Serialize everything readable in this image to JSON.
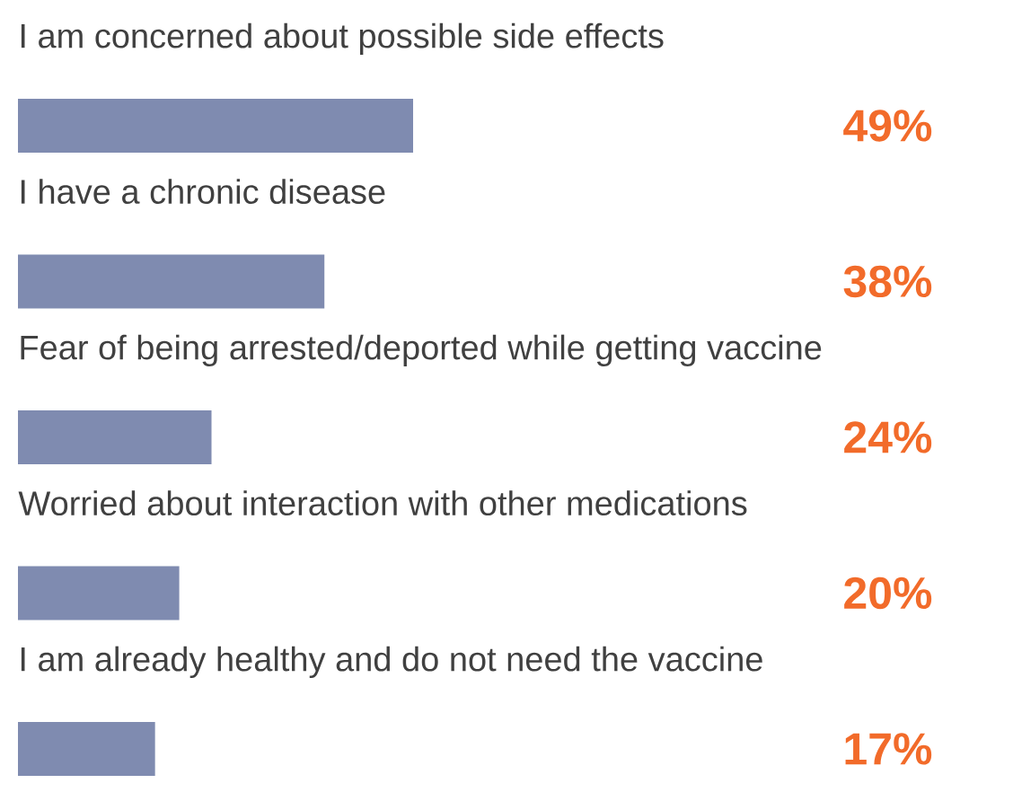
{
  "chart_data": {
    "type": "bar",
    "orientation": "horizontal",
    "categories": [
      "I am concerned about possible side effects",
      "I have a chronic disease",
      "Fear of being arrested/deported while getting vaccine",
      "Worried about interaction with other medications",
      "I am already healthy and do not need the vaccine"
    ],
    "values": [
      49,
      38,
      24,
      20,
      17
    ],
    "value_labels": [
      "49%",
      "38%",
      "24%",
      "20%",
      "17%"
    ],
    "color": "#7f8bb0"
  }
}
